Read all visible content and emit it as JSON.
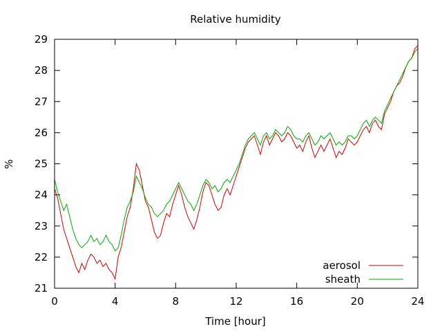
{
  "chart_data": {
    "type": "line",
    "title": "Relative humidity",
    "xlabel": "Time [hour]",
    "ylabel": "%",
    "xlim": [
      0,
      24
    ],
    "ylim": [
      21,
      29
    ],
    "xticks": [
      0,
      4,
      8,
      12,
      16,
      20,
      24
    ],
    "yticks": [
      21,
      22,
      23,
      24,
      25,
      26,
      27,
      28,
      29
    ],
    "grid": false,
    "legend_position": "bottom-right",
    "series": [
      {
        "name": "aerosol",
        "color": "#cc0000",
        "x": [
          0,
          0.2,
          0.4,
          0.6,
          0.8,
          1,
          1.2,
          1.4,
          1.6,
          1.8,
          2,
          2.2,
          2.4,
          2.6,
          2.8,
          3,
          3.2,
          3.4,
          3.6,
          3.8,
          4,
          4.2,
          4.4,
          4.6,
          4.8,
          5,
          5.2,
          5.4,
          5.6,
          5.8,
          6,
          6.2,
          6.4,
          6.6,
          6.8,
          7,
          7.2,
          7.4,
          7.6,
          7.8,
          8,
          8.2,
          8.4,
          8.6,
          8.8,
          9,
          9.2,
          9.4,
          9.6,
          9.8,
          10,
          10.2,
          10.4,
          10.6,
          10.8,
          11,
          11.2,
          11.4,
          11.6,
          11.8,
          12,
          12.2,
          12.4,
          12.6,
          12.8,
          13,
          13.2,
          13.4,
          13.6,
          13.8,
          14,
          14.2,
          14.4,
          14.6,
          14.8,
          15,
          15.2,
          15.4,
          15.6,
          15.8,
          16,
          16.2,
          16.4,
          16.6,
          16.8,
          17,
          17.2,
          17.4,
          17.6,
          17.8,
          18,
          18.2,
          18.4,
          18.6,
          18.8,
          19,
          19.2,
          19.4,
          19.6,
          19.8,
          20,
          20.2,
          20.4,
          20.6,
          20.8,
          21,
          21.2,
          21.4,
          21.6,
          21.8,
          22,
          22.2,
          22.4,
          22.6,
          22.8,
          23,
          23.2,
          23.4,
          23.6,
          23.8,
          24
        ],
        "values": [
          24.2,
          23.9,
          23.4,
          22.9,
          22.6,
          22.3,
          22.0,
          21.7,
          21.5,
          21.8,
          21.6,
          21.9,
          22.1,
          22.0,
          21.8,
          21.9,
          21.7,
          21.8,
          21.6,
          21.5,
          21.3,
          22.0,
          22.3,
          22.8,
          23.3,
          23.6,
          24.2,
          25.0,
          24.8,
          24.3,
          23.8,
          23.6,
          23.2,
          22.8,
          22.6,
          22.7,
          23.1,
          23.4,
          23.3,
          23.7,
          24.0,
          24.3,
          24.0,
          23.6,
          23.3,
          23.1,
          22.9,
          23.2,
          23.6,
          24.1,
          24.4,
          24.3,
          24.0,
          23.7,
          23.5,
          23.6,
          24.0,
          24.2,
          24.0,
          24.3,
          24.6,
          24.9,
          25.2,
          25.5,
          25.7,
          25.8,
          25.9,
          25.6,
          25.3,
          25.7,
          25.9,
          25.6,
          25.8,
          26.0,
          25.9,
          25.7,
          25.8,
          26.0,
          25.9,
          25.7,
          25.5,
          25.6,
          25.4,
          25.7,
          25.9,
          25.5,
          25.2,
          25.4,
          25.6,
          25.4,
          25.6,
          25.8,
          25.5,
          25.2,
          25.4,
          25.3,
          25.5,
          25.8,
          25.7,
          25.6,
          25.7,
          25.9,
          26.1,
          26.2,
          26.0,
          26.3,
          26.4,
          26.2,
          26.1,
          26.6,
          26.8,
          27.0,
          27.3,
          27.5,
          27.6,
          27.8,
          28.1,
          28.3,
          28.4,
          28.7,
          28.8
        ]
      },
      {
        "name": "sheath",
        "color": "#00aa00",
        "x": [
          0,
          0.2,
          0.4,
          0.6,
          0.8,
          1,
          1.2,
          1.4,
          1.6,
          1.8,
          2,
          2.2,
          2.4,
          2.6,
          2.8,
          3,
          3.2,
          3.4,
          3.6,
          3.8,
          4,
          4.2,
          4.4,
          4.6,
          4.8,
          5,
          5.2,
          5.4,
          5.6,
          5.8,
          6,
          6.2,
          6.4,
          6.6,
          6.8,
          7,
          7.2,
          7.4,
          7.6,
          7.8,
          8,
          8.2,
          8.4,
          8.6,
          8.8,
          9,
          9.2,
          9.4,
          9.6,
          9.8,
          10,
          10.2,
          10.4,
          10.6,
          10.8,
          11,
          11.2,
          11.4,
          11.6,
          11.8,
          12,
          12.2,
          12.4,
          12.6,
          12.8,
          13,
          13.2,
          13.4,
          13.6,
          13.8,
          14,
          14.2,
          14.4,
          14.6,
          14.8,
          15,
          15.2,
          15.4,
          15.6,
          15.8,
          16,
          16.2,
          16.4,
          16.6,
          16.8,
          17,
          17.2,
          17.4,
          17.6,
          17.8,
          18,
          18.2,
          18.4,
          18.6,
          18.8,
          19,
          19.2,
          19.4,
          19.6,
          19.8,
          20,
          20.2,
          20.4,
          20.6,
          20.8,
          21,
          21.2,
          21.4,
          21.6,
          21.8,
          22,
          22.2,
          22.4,
          22.6,
          22.8,
          23,
          23.2,
          23.4,
          23.6,
          23.8,
          24
        ],
        "values": [
          24.5,
          24.1,
          23.8,
          23.5,
          23.7,
          23.3,
          22.9,
          22.6,
          22.4,
          22.3,
          22.4,
          22.5,
          22.7,
          22.5,
          22.6,
          22.4,
          22.5,
          22.7,
          22.5,
          22.4,
          22.2,
          22.3,
          22.7,
          23.2,
          23.6,
          23.8,
          24.1,
          24.6,
          24.4,
          24.2,
          23.9,
          23.7,
          23.6,
          23.4,
          23.3,
          23.4,
          23.5,
          23.7,
          23.8,
          24.0,
          24.2,
          24.4,
          24.2,
          24.0,
          23.8,
          23.7,
          23.5,
          23.7,
          24.0,
          24.3,
          24.5,
          24.4,
          24.2,
          24.3,
          24.1,
          24.2,
          24.4,
          24.5,
          24.4,
          24.6,
          24.8,
          25.0,
          25.3,
          25.6,
          25.8,
          25.9,
          26.0,
          25.8,
          25.6,
          25.9,
          26.0,
          25.8,
          25.9,
          26.1,
          26.0,
          25.9,
          26.0,
          26.2,
          26.1,
          25.9,
          25.8,
          25.8,
          25.7,
          25.9,
          26.0,
          25.8,
          25.6,
          25.7,
          25.9,
          25.8,
          25.9,
          26.0,
          25.8,
          25.6,
          25.7,
          25.6,
          25.7,
          25.9,
          25.9,
          25.8,
          25.9,
          26.1,
          26.3,
          26.4,
          26.2,
          26.4,
          26.5,
          26.4,
          26.3,
          26.7,
          26.9,
          27.1,
          27.3,
          27.5,
          27.7,
          27.9,
          28.1,
          28.3,
          28.4,
          28.6,
          28.7
        ]
      }
    ]
  }
}
